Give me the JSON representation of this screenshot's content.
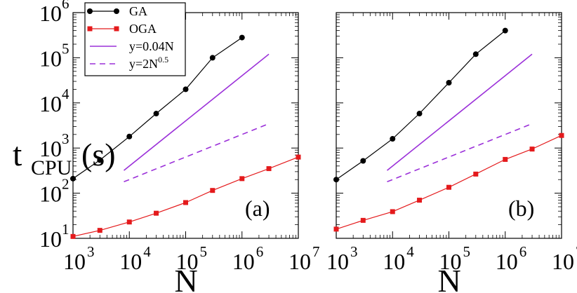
{
  "chart_data": [
    {
      "type": "line",
      "panel_label": "(a)",
      "xscale": "log",
      "yscale": "log",
      "xlim": [
        1000,
        10000000
      ],
      "ylim": [
        10,
        1000000
      ],
      "xlabel": "N",
      "ylabel": "t_CPU (s)",
      "ylabel_main": "t",
      "ylabel_sub": "CPU",
      "ylabel_unit": "(s)",
      "x_tick_exponents": [
        "3",
        "4",
        "5",
        "6",
        "7"
      ],
      "y_tick_exponents": [
        "1",
        "2",
        "3",
        "4",
        "5",
        "6"
      ],
      "tick_base": "10",
      "series": [
        {
          "name": "GA",
          "color": "#000000",
          "marker": "circle",
          "style": "solid",
          "x": [
            1000,
            3000,
            10000,
            30000,
            100000,
            300000,
            1000000
          ],
          "y": [
            210,
            540,
            1800,
            5800,
            20000,
            100000,
            280000
          ]
        },
        {
          "name": "OGA",
          "color": "#e41a1c",
          "marker": "square",
          "style": "solid",
          "x": [
            1000,
            3000,
            10000,
            30000,
            100000,
            300000,
            1000000,
            3000000,
            10000000
          ],
          "y": [
            11,
            15,
            23,
            36,
            62,
            115,
            210,
            350,
            630
          ]
        },
        {
          "name": "y=0.04N",
          "color": "#9b30d9",
          "marker": "none",
          "style": "solid",
          "x": [
            8000,
            3000000
          ],
          "y": [
            320,
            120000
          ]
        },
        {
          "name": "y=2N^0.5",
          "color": "#9b30d9",
          "marker": "none",
          "style": "dashed",
          "x": [
            8000,
            3000000
          ],
          "y": [
            179,
            3464
          ]
        }
      ]
    },
    {
      "type": "line",
      "panel_label": "(b)",
      "xscale": "log",
      "yscale": "log",
      "xlim": [
        1000,
        10000000
      ],
      "ylim": [
        10,
        1000000
      ],
      "xlabel": "N",
      "x_tick_exponents": [
        "3",
        "4",
        "5",
        "6",
        "7"
      ],
      "tick_base": "10",
      "series": [
        {
          "name": "GA",
          "color": "#000000",
          "marker": "circle",
          "style": "solid",
          "x": [
            1000,
            3000,
            10000,
            30000,
            100000,
            300000,
            1000000
          ],
          "y": [
            200,
            520,
            1600,
            5800,
            28000,
            120000,
            400000
          ]
        },
        {
          "name": "OGA",
          "color": "#e41a1c",
          "marker": "square",
          "style": "solid",
          "x": [
            1000,
            3000,
            10000,
            30000,
            100000,
            300000,
            1000000,
            3000000,
            10000000
          ],
          "y": [
            16,
            25,
            39,
            70,
            135,
            265,
            560,
            950,
            1900
          ]
        },
        {
          "name": "y=0.04N",
          "color": "#9b30d9",
          "marker": "none",
          "style": "solid",
          "x": [
            8000,
            3000000
          ],
          "y": [
            320,
            120000
          ]
        },
        {
          "name": "y=2N^0.5",
          "color": "#9b30d9",
          "marker": "none",
          "style": "dashed",
          "x": [
            8000,
            3000000
          ],
          "y": [
            179,
            3464
          ]
        }
      ]
    }
  ],
  "legend": {
    "placement": "top-left",
    "entries": [
      {
        "label": "GA",
        "sup": "",
        "color": "#000000",
        "marker": "circle",
        "style": "solid"
      },
      {
        "label": "OGA",
        "sup": "",
        "color": "#e41a1c",
        "marker": "square",
        "style": "solid"
      },
      {
        "label": "y=0.04N",
        "sup": "",
        "color": "#9b30d9",
        "marker": "none",
        "style": "solid"
      },
      {
        "label": "y=2N",
        "sup": "0.5",
        "color": "#9b30d9",
        "marker": "none",
        "style": "dashed"
      }
    ]
  }
}
